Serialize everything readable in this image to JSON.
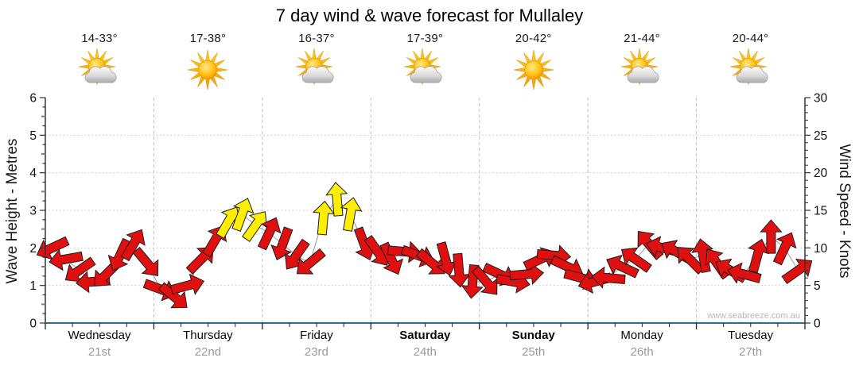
{
  "title": "7 day wind & wave forecast for Mullaley",
  "watermark": "www.seabreeze.com.au",
  "days": [
    {
      "name": "Wednesday",
      "date": "21st",
      "temp": "14-33°",
      "icon": "sun-behind-cloud-icon",
      "weekend": false
    },
    {
      "name": "Thursday",
      "date": "22nd",
      "temp": "17-38°",
      "icon": "sun-icon",
      "weekend": false
    },
    {
      "name": "Friday",
      "date": "23rd",
      "temp": "16-37°",
      "icon": "sun-behind-cloud-icon",
      "weekend": false
    },
    {
      "name": "Saturday",
      "date": "24th",
      "temp": "17-39°",
      "icon": "sun-behind-cloud-icon",
      "weekend": true
    },
    {
      "name": "Sunday",
      "date": "25th",
      "temp": "20-42°",
      "icon": "sun-icon",
      "weekend": true
    },
    {
      "name": "Monday",
      "date": "26th",
      "temp": "21-44°",
      "icon": "sun-behind-cloud-icon",
      "weekend": false
    },
    {
      "name": "Tuesday",
      "date": "27th",
      "temp": "20-44°",
      "icon": "sun-behind-cloud-icon",
      "weekend": false
    }
  ],
  "chart_data": {
    "type": "wind-arrow-timeseries",
    "title": "7 day wind & wave forecast for Mullaley",
    "left_axis": {
      "label": "Wave Height - Metres",
      "min": 0,
      "max": 6,
      "tick_step": 1,
      "gridlines": [
        1,
        2,
        3,
        4,
        5
      ]
    },
    "right_axis": {
      "label": "Wind Speed - Knots",
      "min": 0,
      "max": 30,
      "tick_step": 5
    },
    "x_axis": {
      "categories": [
        "Wednesday 21st",
        "Thursday 22nd",
        "Friday 23rd",
        "Saturday 24th",
        "Sunday 25th",
        "Monday 26th",
        "Tuesday 27th"
      ],
      "points_per_day": 8,
      "minor_ticks_per_day": 4
    },
    "arrow_colors": {
      "red": "#e11010",
      "yellow": "#ffee00",
      "outline": "#1c1c1c"
    },
    "axis_colors": {
      "x_axis_line": "#2e6e96",
      "y_axis_line": "#333333",
      "gridline": "#c3c3c3"
    },
    "wind_points": [
      {
        "knots": 10,
        "dir": 245,
        "color": "red"
      },
      {
        "knots": 8.5,
        "dir": 260,
        "color": "red"
      },
      {
        "knots": 7,
        "dir": 235,
        "color": "red"
      },
      {
        "knots": 5.5,
        "dir": 265,
        "color": "red"
      },
      {
        "knots": 6.5,
        "dir": 225,
        "color": "red"
      },
      {
        "knots": 9,
        "dir": 205,
        "color": "red"
      },
      {
        "knots": 10.5,
        "dir": 30,
        "color": "red"
      },
      {
        "knots": 8,
        "dir": 140,
        "color": "red"
      },
      {
        "knots": 4.5,
        "dir": 110,
        "color": "red"
      },
      {
        "knots": 3.5,
        "dir": 130,
        "color": "red"
      },
      {
        "knots": 5,
        "dir": 75,
        "color": "red"
      },
      {
        "knots": 8.5,
        "dir": 45,
        "color": "red"
      },
      {
        "knots": 11,
        "dir": 30,
        "color": "red"
      },
      {
        "knots": 13.5,
        "dir": 30,
        "color": "yellow"
      },
      {
        "knots": 14.5,
        "dir": 20,
        "color": "yellow"
      },
      {
        "knots": 13,
        "dir": 35,
        "color": "yellow"
      },
      {
        "knots": 12,
        "dir": 25,
        "color": "red"
      },
      {
        "knots": 10.5,
        "dir": 200,
        "color": "red"
      },
      {
        "knots": 9,
        "dir": 215,
        "color": "red"
      },
      {
        "knots": 8,
        "dir": 230,
        "color": "red"
      },
      {
        "knots": 14,
        "dir": 5,
        "color": "yellow"
      },
      {
        "knots": 16.5,
        "dir": 355,
        "color": "yellow"
      },
      {
        "knots": 14.5,
        "dir": 10,
        "color": "yellow"
      },
      {
        "knots": 10.5,
        "dir": 160,
        "color": "red"
      },
      {
        "knots": 9.5,
        "dir": 145,
        "color": "red"
      },
      {
        "knots": 8.5,
        "dir": 155,
        "color": "red"
      },
      {
        "knots": 9.5,
        "dir": 95,
        "color": "red"
      },
      {
        "knots": 9,
        "dir": 110,
        "color": "red"
      },
      {
        "knots": 8,
        "dir": 130,
        "color": "red"
      },
      {
        "knots": 8.5,
        "dir": 165,
        "color": "red"
      },
      {
        "knots": 7,
        "dir": 175,
        "color": "red"
      },
      {
        "knots": 5.5,
        "dir": 185,
        "color": "red"
      },
      {
        "knots": 5.5,
        "dir": 140,
        "color": "red"
      },
      {
        "knots": 6.5,
        "dir": 115,
        "color": "red"
      },
      {
        "knots": 5.5,
        "dir": 100,
        "color": "red"
      },
      {
        "knots": 6.5,
        "dir": 85,
        "color": "red"
      },
      {
        "knots": 8.5,
        "dir": 65,
        "color": "red"
      },
      {
        "knots": 9,
        "dir": 95,
        "color": "red"
      },
      {
        "knots": 7.5,
        "dir": 115,
        "color": "red"
      },
      {
        "knots": 6,
        "dir": 105,
        "color": "red"
      },
      {
        "knots": 5.5,
        "dir": 255,
        "color": "red"
      },
      {
        "knots": 6,
        "dir": 275,
        "color": "red"
      },
      {
        "knots": 7.5,
        "dir": 295,
        "color": "red"
      },
      {
        "knots": 8.5,
        "dir": 305,
        "color": "red"
      },
      {
        "knots": 10.5,
        "dir": 320,
        "color": "red"
      },
      {
        "knots": 10,
        "dir": 285,
        "color": "red"
      },
      {
        "knots": 9.5,
        "dir": 300,
        "color": "red"
      },
      {
        "knots": 8.5,
        "dir": 315,
        "color": "red"
      },
      {
        "knots": 9,
        "dir": 350,
        "color": "red"
      },
      {
        "knots": 8,
        "dir": 325,
        "color": "red"
      },
      {
        "knots": 7,
        "dir": 300,
        "color": "red"
      },
      {
        "knots": 6.5,
        "dir": 285,
        "color": "red"
      },
      {
        "knots": 9,
        "dir": 15,
        "color": "red"
      },
      {
        "knots": 11.5,
        "dir": 0,
        "color": "red"
      },
      {
        "knots": 10,
        "dir": 25,
        "color": "red"
      },
      {
        "knots": 7,
        "dir": 55,
        "color": "red"
      }
    ]
  }
}
